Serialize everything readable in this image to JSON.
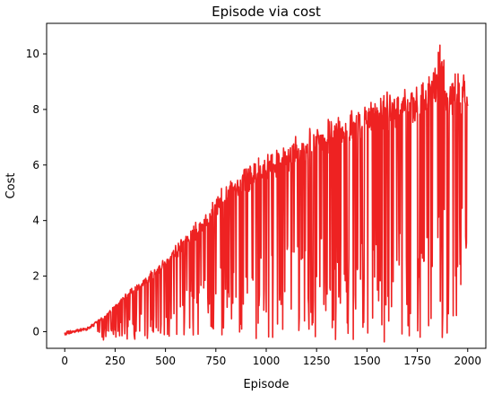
{
  "chart_data": {
    "type": "line",
    "title": "Episode via cost",
    "xlabel": "Episode",
    "ylabel": "Cost",
    "xlim": [
      -90,
      2090
    ],
    "ylim": [
      -0.6,
      11.1
    ],
    "xticks": [
      0,
      250,
      500,
      750,
      1000,
      1250,
      1500,
      1750,
      2000
    ],
    "yticks": [
      0,
      2,
      4,
      6,
      8,
      10
    ],
    "xtick_labels": [
      "0",
      "250",
      "500",
      "750",
      "1000",
      "1250",
      "1500",
      "1750",
      "2000"
    ],
    "ytick_labels": [
      "0",
      "2",
      "4",
      "6",
      "8",
      "10"
    ],
    "grid": false,
    "legend": "none",
    "series": [
      {
        "color": "#ee2222",
        "envelope": {
          "x": [
            0,
            100,
            150,
            200,
            250,
            300,
            400,
            500,
            600,
            700,
            750,
            800,
            900,
            1000,
            1100,
            1200,
            1300,
            1400,
            1500,
            1600,
            1700,
            1800,
            1870,
            1900,
            2000
          ],
          "high": [
            0.0,
            0.15,
            0.35,
            0.6,
            1.0,
            1.4,
            2.0,
            2.7,
            3.6,
            4.4,
            5.0,
            5.4,
            6.0,
            6.6,
            7.0,
            7.3,
            7.7,
            8.1,
            8.5,
            8.7,
            9.0,
            9.3,
            10.6,
            9.4,
            9.4
          ],
          "low": [
            -0.05,
            -0.2,
            -0.3,
            -0.3,
            -0.3,
            -0.3,
            -0.3,
            -0.25,
            -0.2,
            -0.2,
            -0.2,
            -0.2,
            -0.2,
            -0.3,
            -0.3,
            -0.3,
            -0.3,
            -0.3,
            -0.4,
            -0.5,
            -0.5,
            -0.5,
            -0.5,
            -0.5,
            1.8
          ]
        }
      }
    ]
  }
}
